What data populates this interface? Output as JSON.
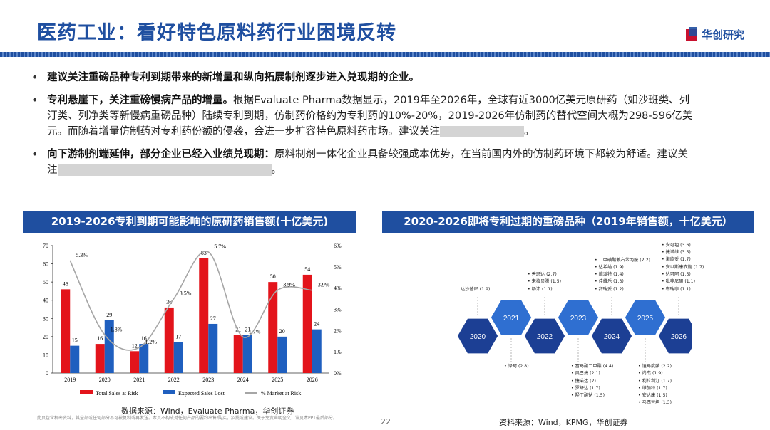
{
  "header": {
    "title": "医药工业：看好特色原料药行业困境反转",
    "brand": "华创研究"
  },
  "bullets": [
    {
      "bold": "建议关注重磅品种专利到期带来的新增量和纵向拓展制剂逐步进入兑现期的企业。",
      "text": ""
    },
    {
      "bold": "专利悬崖下，关注重磅慢病产品的增量。",
      "text": "根据Evaluate Pharma数据显示，2019年至2026年，全球有近3000亿美元原研药（如沙班类、列汀类、列净类等新慢病重磅品种）陆续专利到期，仿制药价格约为专利药的10%-20%，2019-2026年仿制药的替代空间大概为298-596亿美元。而随着增量仿制药对专利药份额的侵袭，会进一步扩容特色原料药市场。建议关注",
      "end": "。"
    },
    {
      "bold": "向下游制剂端延伸，部分企业已经入业绩兑现期：",
      "text": "原料制剂一体化企业具备较强成本优势，在当前国内外的仿制药环境下都较为舒适。建议关注",
      "end": "。"
    }
  ],
  "left_panel": {
    "title": "2019-2026专利到期可能影响的原研药销售额(十亿美元)",
    "source": "数据来源：Wind，Evaluate Pharma，华创证券"
  },
  "right_panel": {
    "title": "2020-2026即将专利过期的重磅品种（2019年销售额，十亿美元）",
    "source": "资料来源：Wind，KPMG，华创证券"
  },
  "footer": {
    "disclaimer": "此页包含机密资料，其全部或任何部分不可被复制或再发送。本页不构成对任何产品的要约出售/购买，招揽或建议。关于免责声明全文，详见本PPT最后部分。",
    "page": "22"
  },
  "chart_data": {
    "type": "bar",
    "categories": [
      "2019",
      "2020",
      "2021",
      "2022",
      "2023",
      "2024",
      "2025",
      "2026"
    ],
    "series": [
      {
        "name": "Total Sales at Risk",
        "type": "bar",
        "axis": "left",
        "color": "#e3141b",
        "values": [
          46,
          16,
          12,
          36,
          63,
          21,
          50,
          54
        ]
      },
      {
        "name": "Expected Sales Lost",
        "type": "bar",
        "axis": "left",
        "color": "#1f5fbf",
        "values": [
          15,
          29,
          16,
          17,
          27,
          21,
          20,
          24
        ]
      },
      {
        "name": "% Market at Risk",
        "type": "line",
        "axis": "right",
        "color": "#a6a6a6",
        "values": [
          5.3,
          1.8,
          1.2,
          3.5,
          5.7,
          1.7,
          3.9,
          3.9
        ]
      }
    ],
    "ylim": [
      0,
      70
    ],
    "yticks": [
      0,
      10,
      20,
      30,
      40,
      50,
      60,
      70
    ],
    "y2lim": [
      0,
      6
    ],
    "y2ticks": [
      "0%",
      "1%",
      "2%",
      "3%",
      "4%",
      "5%",
      "6%"
    ],
    "legend": "bottom"
  },
  "timeline": {
    "years": [
      "2020",
      "2021",
      "2022",
      "2023",
      "2024",
      "2025",
      "2026"
    ],
    "above": [
      {
        "items": [
          "达沙替尼 (1.9)"
        ]
      },
      {
        "items": [
          "善思达 (2.7)",
          "来拉贝腾 (1.5)",
          "畅沛 (1.1)"
        ]
      },
      {
        "items": [
          "二甲磺酸赖右苯丙胺 (2.2)",
          "达希纳 (1.9)",
          "维派特 (1.4)",
          "佳維乐 (1.3)",
          "拜瑞妥 (1.2)"
        ]
      },
      {
        "items": [
          "安可坦 (3.6)",
          "捷诺维 (3.5)",
          "诺欣妥 (1.7)",
          "安以斯康衣旎 (1.7)",
          "达可阿 (1.5)",
          "吡非尼酮 (1.1)",
          "布瑞亭 (1.1)"
        ]
      }
    ],
    "below": [
      {
        "items": [
          "泽珂 (2.8)"
        ]
      },
      {
        "items": [
          "富马酸二甲酯 (4.4)",
          "奥巴捷 (2.1)",
          "捷诺达 (2)",
          "罗舒达 (1.7)",
          "羟丁酸钠 (1.5)"
        ]
      },
      {
        "items": [
          "迫马度胺 (2.2)",
          "尚杰 (1.9)",
          "利拉利汀 (1.7)",
          "维加特 (1.7)",
          "安达康 (1.5)",
          "马西替坦 (1.3)"
        ]
      }
    ]
  }
}
